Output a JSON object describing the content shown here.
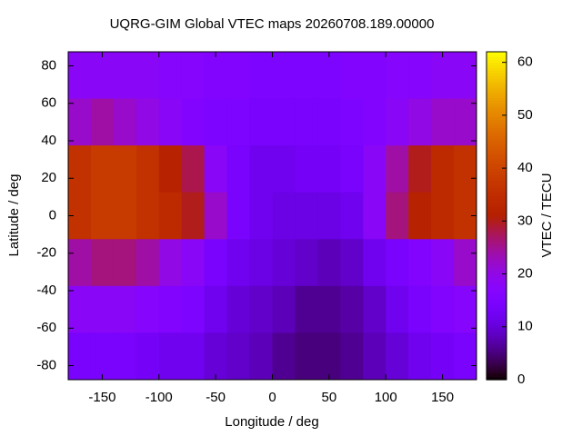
{
  "chart_data": {
    "type": "heatmap",
    "title": "UQRG-GIM Global VTEC maps 20260708.189.00000",
    "x_label": "Longitude / deg",
    "y_label": "Latitude / deg",
    "colorbar_label": "VTEC / TECU",
    "x": [
      -170,
      -150,
      -130,
      -110,
      -90,
      -70,
      -50,
      -30,
      -10,
      10,
      30,
      50,
      70,
      90,
      110,
      130,
      150,
      170
    ],
    "y": [
      75,
      50,
      25,
      0,
      -25,
      -50,
      -75
    ],
    "z": [
      [
        18,
        18,
        18,
        18,
        17,
        17,
        16,
        16,
        15,
        15,
        15,
        15,
        16,
        16,
        17,
        17,
        18,
        18
      ],
      [
        22,
        24,
        22,
        20,
        18,
        16,
        15,
        15,
        14,
        14,
        14,
        14,
        15,
        16,
        18,
        20,
        22,
        22
      ],
      [
        36,
        38,
        38,
        36,
        32,
        28,
        18,
        14,
        12,
        12,
        13,
        13,
        14,
        18,
        24,
        30,
        34,
        36
      ],
      [
        36,
        38,
        38,
        36,
        34,
        30,
        22,
        14,
        12,
        11,
        11,
        11,
        12,
        18,
        26,
        32,
        34,
        36
      ],
      [
        24,
        26,
        26,
        24,
        20,
        18,
        14,
        12,
        11,
        10,
        9,
        8,
        9,
        12,
        14,
        16,
        18,
        22
      ],
      [
        18,
        18,
        18,
        17,
        16,
        15,
        12,
        10,
        9,
        8,
        6,
        6,
        7,
        9,
        12,
        14,
        16,
        17
      ],
      [
        14,
        14,
        14,
        13,
        12,
        12,
        10,
        9,
        8,
        6,
        5,
        5,
        6,
        8,
        10,
        12,
        13,
        14
      ]
    ],
    "xlim": [
      -180,
      180
    ],
    "ylim": [
      -87.5,
      87.5
    ],
    "clim": [
      0,
      62
    ],
    "xticks": [
      -150,
      -100,
      -50,
      0,
      50,
      100,
      150
    ],
    "yticks": [
      -80,
      -60,
      -40,
      -20,
      0,
      20,
      40,
      60,
      80
    ],
    "cticks": [
      0,
      10,
      20,
      30,
      40,
      50,
      60
    ]
  }
}
